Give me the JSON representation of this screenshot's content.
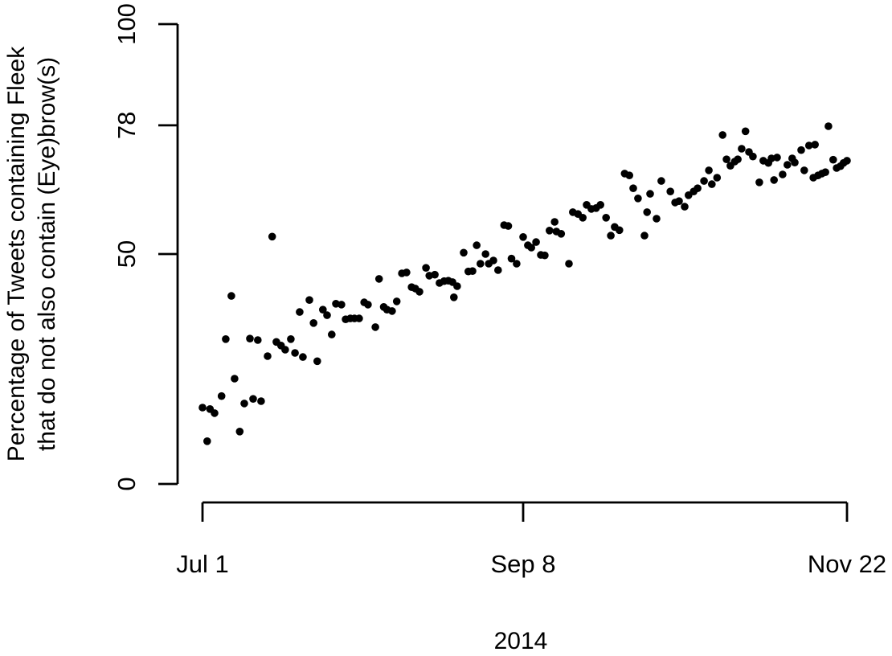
{
  "figure": {
    "background_color": "#ffffff",
    "foreground_color": "#000000"
  },
  "chart_data": {
    "type": "scatter",
    "title": "",
    "x_axis": {
      "label": "2014",
      "unit": "date (days since Jul 1, 2014)",
      "range_days": [
        0,
        144
      ],
      "ticks": [
        {
          "day": 0,
          "label": "Jul 1"
        },
        {
          "day": 69,
          "label": "Sep 8"
        },
        {
          "day": 144,
          "label": "Nov 22"
        }
      ]
    },
    "y_axis": {
      "label_line1": "Percentage of Tweets containing Fleek",
      "label_line2": "that do not also contain (Eye)brow(s)",
      "range": [
        0,
        100
      ],
      "ticks": [
        0,
        50,
        78,
        100
      ]
    },
    "marker": {
      "shape": "filled-circle",
      "color": "#000000",
      "radius_px": 4.8
    },
    "legend": null,
    "grid": false,
    "points": [
      [
        0,
        16.6
      ],
      [
        1,
        9.3
      ],
      [
        1.6,
        16.3
      ],
      [
        2.6,
        15.4
      ],
      [
        4.1,
        19.1
      ],
      [
        5,
        31.5
      ],
      [
        6.2,
        40.9
      ],
      [
        6.9,
        22.9
      ],
      [
        8,
        11.4
      ],
      [
        9,
        17.5
      ],
      [
        10.2,
        31.6
      ],
      [
        10.9,
        18.5
      ],
      [
        11.9,
        31.3
      ],
      [
        12.6,
        18
      ],
      [
        14,
        27.8
      ],
      [
        15,
        53.8
      ],
      [
        15.9,
        30.9
      ],
      [
        16.9,
        30.1
      ],
      [
        17.8,
        29.2
      ],
      [
        19,
        31.5
      ],
      [
        19.9,
        28.5
      ],
      [
        20.9,
        37.4
      ],
      [
        21.6,
        27.6
      ],
      [
        23,
        40
      ],
      [
        23.9,
        35
      ],
      [
        24.7,
        26.7
      ],
      [
        25.9,
        37.9
      ],
      [
        26.8,
        36.7
      ],
      [
        27.8,
        32.5
      ],
      [
        28.7,
        39.2
      ],
      [
        29.9,
        39
      ],
      [
        30.8,
        35.8
      ],
      [
        31.8,
        36
      ],
      [
        32.7,
        36
      ],
      [
        33.7,
        36
      ],
      [
        34.8,
        39.5
      ],
      [
        35.6,
        39
      ],
      [
        37.2,
        34.1
      ],
      [
        38,
        44.6
      ],
      [
        39,
        38.5
      ],
      [
        39.7,
        37.9
      ],
      [
        40.8,
        37.6
      ],
      [
        41.8,
        39.7
      ],
      [
        42.9,
        45.8
      ],
      [
        43.9,
        46
      ],
      [
        45,
        42.8
      ],
      [
        45.8,
        42.5
      ],
      [
        46.7,
        41.8
      ],
      [
        48.1,
        47
      ],
      [
        48.8,
        45.3
      ],
      [
        50,
        45.5
      ],
      [
        51,
        43.7
      ],
      [
        52,
        44.1
      ],
      [
        52.9,
        44.2
      ],
      [
        53.8,
        43.9
      ],
      [
        54.1,
        40.6
      ],
      [
        54.8,
        43
      ],
      [
        56.2,
        50.3
      ],
      [
        57.2,
        46.2
      ],
      [
        58.1,
        46.3
      ],
      [
        59,
        51.9
      ],
      [
        59.8,
        47.9
      ],
      [
        60.9,
        50
      ],
      [
        61.6,
        47.9
      ],
      [
        62.6,
        48.6
      ],
      [
        63.6,
        46.5
      ],
      [
        64.9,
        56.3
      ],
      [
        65.8,
        56.1
      ],
      [
        66.5,
        49
      ],
      [
        67.6,
        47.9
      ],
      [
        69,
        53.7
      ],
      [
        70.1,
        51.9
      ],
      [
        70.9,
        51.4
      ],
      [
        72,
        52.6
      ],
      [
        73.1,
        49.8
      ],
      [
        74,
        49.7
      ],
      [
        75.1,
        55.1
      ],
      [
        76.3,
        57
      ],
      [
        76.7,
        54.9
      ],
      [
        77.8,
        54.4
      ],
      [
        79.6,
        47.9
      ],
      [
        80.5,
        59.1
      ],
      [
        81.7,
        58.7
      ],
      [
        82.8,
        57.9
      ],
      [
        83.7,
        60.7
      ],
      [
        84.8,
        59.8
      ],
      [
        85.9,
        60
      ],
      [
        86.9,
        60.7
      ],
      [
        88.2,
        57.9
      ],
      [
        89.3,
        54
      ],
      [
        90.2,
        55.9
      ],
      [
        91.3,
        55.2
      ],
      [
        92.5,
        67.5
      ],
      [
        93.6,
        67.1
      ],
      [
        94.5,
        64.3
      ],
      [
        95.6,
        62.1
      ],
      [
        97.1,
        54
      ],
      [
        97.7,
        59.1
      ],
      [
        98.4,
        63.1
      ],
      [
        99.9,
        57.7
      ],
      [
        101,
        65.9
      ],
      [
        103.1,
        63.6
      ],
      [
        104.2,
        61.2
      ],
      [
        105.1,
        61.5
      ],
      [
        106.4,
        60.3
      ],
      [
        107.3,
        62.8
      ],
      [
        108.5,
        63.6
      ],
      [
        109.4,
        64.3
      ],
      [
        110.9,
        65.9
      ],
      [
        112,
        68.2
      ],
      [
        112.7,
        65.2
      ],
      [
        113.9,
        66.6
      ],
      [
        115.2,
        75.9
      ],
      [
        116.1,
        70.6
      ],
      [
        117,
        69.2
      ],
      [
        118,
        70.1
      ],
      [
        118.7,
        70.6
      ],
      [
        119.6,
        72.9
      ],
      [
        120.5,
        76.7
      ],
      [
        121.3,
        72.2
      ],
      [
        122.2,
        71.2
      ],
      [
        123.7,
        65.6
      ],
      [
        124.6,
        70.3
      ],
      [
        125.8,
        69.8
      ],
      [
        126.5,
        70.8
      ],
      [
        127.1,
        66.1
      ],
      [
        127.8,
        71
      ],
      [
        129.1,
        67.3
      ],
      [
        130.2,
        69.4
      ],
      [
        131.3,
        70.8
      ],
      [
        131.9,
        69.9
      ],
      [
        133.4,
        72.6
      ],
      [
        134.1,
        68.2
      ],
      [
        135.2,
        73.6
      ],
      [
        136.2,
        66.6
      ],
      [
        136.6,
        73.8
      ],
      [
        137.3,
        67.1
      ],
      [
        138.2,
        67.5
      ],
      [
        139,
        67.8
      ],
      [
        139.7,
        77.8
      ],
      [
        140.8,
        70.5
      ],
      [
        141.6,
        68.7
      ],
      [
        142.5,
        69.1
      ],
      [
        143.2,
        69.8
      ],
      [
        144,
        70.3
      ]
    ]
  }
}
